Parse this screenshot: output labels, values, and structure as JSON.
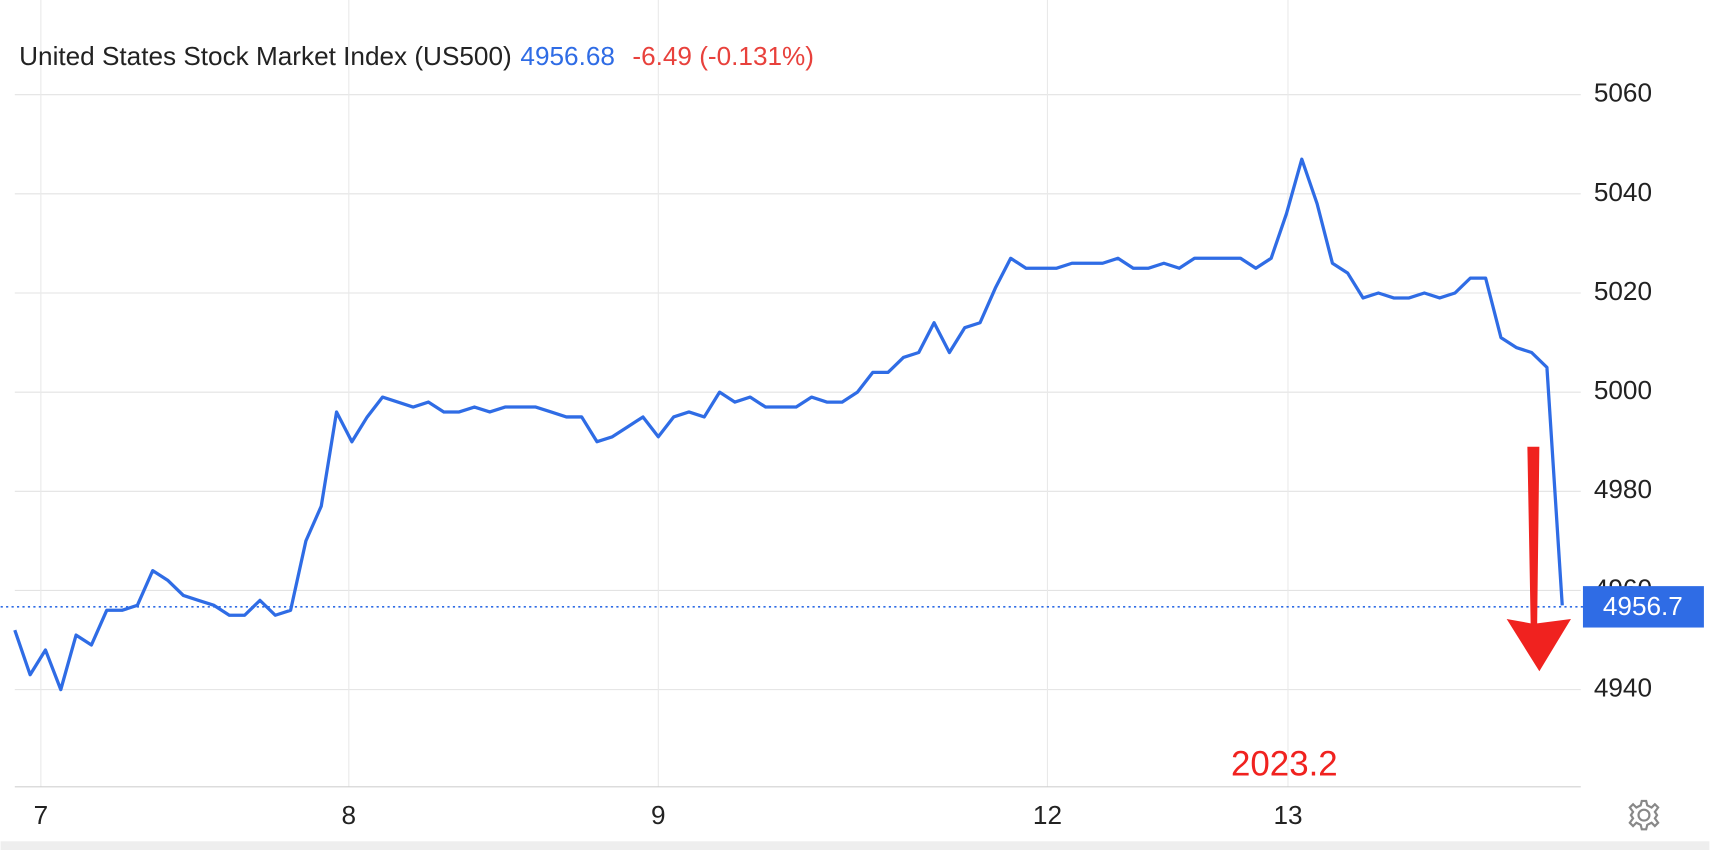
{
  "chart_data": {
    "type": "line",
    "title": "United States Stock Market Index (US500)",
    "price": "4956.68",
    "change": "-6.49 (-0.131%)",
    "annotation": "2023.2",
    "last_value": 4956.7,
    "last_label": "4956.7",
    "ylim": [
      4920.4,
      5079.1
    ],
    "yticks": [
      4940,
      4960,
      4980,
      5000,
      5020,
      5040,
      5060
    ],
    "xlim": [
      0,
      101
    ],
    "xticks": [
      {
        "value": 1.7,
        "label": "7"
      },
      {
        "value": 21.8,
        "label": "8"
      },
      {
        "value": 42,
        "label": "9"
      },
      {
        "value": 67.4,
        "label": "12"
      },
      {
        "value": 83.1,
        "label": "13"
      }
    ],
    "grid": true,
    "series": [
      {
        "name": "US500",
        "color": "#2f6ce5",
        "values": [
          4952,
          4943,
          4948,
          4940,
          4951,
          4949,
          4956,
          4956,
          4957,
          4964,
          4962,
          4959,
          4958,
          4957,
          4955,
          4955,
          4958,
          4955,
          4956,
          4970,
          4977,
          4996,
          4990,
          4995,
          4999,
          4998,
          4997,
          4998,
          4996,
          4996,
          4997,
          4996,
          4997,
          4997,
          4997,
          4996,
          4995,
          4995,
          4990,
          4991,
          4993,
          4995,
          4991,
          4995,
          4996,
          4995,
          5000,
          4998,
          4999,
          4997,
          4997,
          4997,
          4999,
          4998,
          4998,
          5000,
          5004,
          5004,
          5007,
          5008,
          5014,
          5008,
          5013,
          5014,
          5021,
          5027,
          5025,
          5025,
          5025,
          5026,
          5026,
          5026,
          5027,
          5025,
          5025,
          5026,
          5025,
          5027,
          5027,
          5027,
          5027,
          5025,
          5027,
          5036,
          5047,
          5038,
          5026,
          5024,
          5019,
          5020,
          5019,
          5019,
          5020,
          5019,
          5020,
          5023,
          5023,
          5011,
          5009,
          5008,
          5005,
          4957
        ]
      }
    ]
  }
}
